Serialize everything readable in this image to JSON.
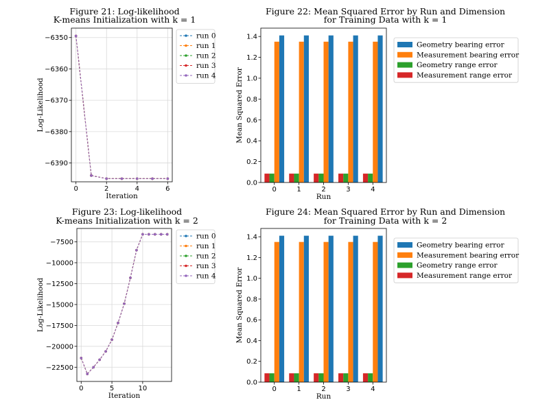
{
  "chart_data": [
    {
      "id": "fig21",
      "type": "line",
      "title": [
        "Figure 21: Log-likelihood",
        "K-means Initialization with k = 1"
      ],
      "xlabel": "Iteration",
      "ylabel": "Log-Likelihood",
      "xlim": [
        -0.3,
        6.3
      ],
      "ylim": [
        -6396,
        -6347
      ],
      "xticks": [
        0,
        2,
        4,
        6
      ],
      "yticks": [
        -6350,
        -6360,
        -6370,
        -6380,
        -6390
      ],
      "xtick_labels": [
        "0",
        "2",
        "4",
        "6"
      ],
      "ytick_labels": [
        "−6350",
        "−6360",
        "−6370",
        "−6380",
        "−6390"
      ],
      "grid": true,
      "legend": "outside-right",
      "x": [
        0,
        1,
        2,
        3,
        4,
        5,
        6
      ],
      "series": [
        {
          "name": "run 0",
          "color": "#1f77b4",
          "values": [
            -6349.5,
            -6394,
            -6395,
            -6395,
            -6395,
            -6395,
            -6395
          ]
        },
        {
          "name": "run 1",
          "color": "#ff7f0e",
          "values": [
            -6349.5,
            -6394,
            -6395,
            -6395,
            -6395,
            -6395,
            -6395
          ]
        },
        {
          "name": "run 2",
          "color": "#2ca02c",
          "values": [
            -6349.5,
            -6394,
            -6395,
            -6395,
            -6395,
            -6395,
            -6395
          ]
        },
        {
          "name": "run 3",
          "color": "#d62728",
          "values": [
            -6349.5,
            -6394,
            -6395,
            -6395,
            -6395,
            -6395,
            -6395
          ]
        },
        {
          "name": "run 4",
          "color": "#9467bd",
          "values": [
            -6349.5,
            -6394,
            -6395,
            -6395,
            -6395,
            -6395,
            -6395
          ]
        }
      ]
    },
    {
      "id": "fig22",
      "type": "bar",
      "title": [
        "Figure 22: Mean Squared Error by Run and Dimension",
        "for Training Data with k = 1"
      ],
      "xlabel": "Run",
      "ylabel": "Mean Squared Error",
      "ylim": [
        0,
        1.48
      ],
      "yticks": [
        0.0,
        0.2,
        0.4,
        0.6,
        0.8,
        1.0,
        1.2,
        1.4
      ],
      "ytick_labels": [
        "0.0",
        "0.2",
        "0.4",
        "0.6",
        "0.8",
        "1.0",
        "1.2",
        "1.4"
      ],
      "categories": [
        "0",
        "1",
        "2",
        "3",
        "4"
      ],
      "legend": "outside-right",
      "series": [
        {
          "name": "Measurement range error",
          "color": "#d62728",
          "values": [
            0.085,
            0.085,
            0.085,
            0.085,
            0.085
          ]
        },
        {
          "name": "Geometry range error",
          "color": "#2ca02c",
          "values": [
            0.085,
            0.085,
            0.085,
            0.085,
            0.085
          ]
        },
        {
          "name": "Measurement bearing error",
          "color": "#ff7f0e",
          "values": [
            1.35,
            1.35,
            1.35,
            1.35,
            1.35
          ]
        },
        {
          "name": "Geometry bearing error",
          "color": "#1f77b4",
          "values": [
            1.41,
            1.41,
            1.41,
            1.41,
            1.41
          ]
        }
      ],
      "legend_order": [
        "Geometry bearing error",
        "Measurement bearing error",
        "Geometry range error",
        "Measurement range error"
      ]
    },
    {
      "id": "fig23",
      "type": "line",
      "title": [
        "Figure 23: Log-likelihood",
        "K-means Initialization with k = 2"
      ],
      "xlabel": "Iteration",
      "ylabel": "Log-Likelihood",
      "xlim": [
        -0.7,
        14.7
      ],
      "ylim": [
        -24200,
        -5900
      ],
      "xticks": [
        0,
        5,
        10
      ],
      "yticks": [
        -7500,
        -10000,
        -12500,
        -15000,
        -17500,
        -20000,
        -22500
      ],
      "xtick_labels": [
        "0",
        "5",
        "10"
      ],
      "ytick_labels": [
        "−7500",
        "−10000",
        "−12500",
        "−15000",
        "−17500",
        "−20000",
        "−22500"
      ],
      "grid": true,
      "legend": "outside-right",
      "x": [
        0,
        1,
        2,
        3,
        4,
        5,
        6,
        7,
        8,
        9,
        10,
        11,
        12,
        13,
        14
      ],
      "series": [
        {
          "name": "run 0",
          "color": "#1f77b4",
          "values": [
            -21400,
            -23300,
            -22500,
            -21600,
            -20600,
            -19200,
            -17200,
            -14900,
            -11800,
            -8500,
            -6600,
            -6600,
            -6600,
            -6600,
            -6600
          ]
        },
        {
          "name": "run 1",
          "color": "#ff7f0e",
          "values": [
            -21400,
            -23300,
            -22500,
            -21600,
            -20600,
            -19200,
            -17200,
            -14900,
            -11800,
            -8500,
            -6600,
            -6600,
            -6600,
            -6600,
            -6600
          ]
        },
        {
          "name": "run 2",
          "color": "#2ca02c",
          "values": [
            -21400,
            -23300,
            -22500,
            -21600,
            -20600,
            -19200,
            -17200,
            -14900,
            -11800,
            -8500,
            -6600,
            -6600,
            -6600,
            -6600,
            -6600
          ]
        },
        {
          "name": "run 3",
          "color": "#d62728",
          "values": [
            -21400,
            -23300,
            -22500,
            -21600,
            -20600,
            -19200,
            -17200,
            -14900,
            -11800,
            -8500,
            -6600,
            -6600,
            -6600,
            -6600,
            -6600
          ]
        },
        {
          "name": "run 4",
          "color": "#9467bd",
          "values": [
            -21400,
            -23300,
            -22500,
            -21600,
            -20600,
            -19200,
            -17200,
            -14900,
            -11800,
            -8500,
            -6600,
            -6600,
            -6600,
            -6600,
            -6600
          ]
        }
      ]
    },
    {
      "id": "fig24",
      "type": "bar",
      "title": [
        "Figure 24: Mean Squared Error by Run and Dimension",
        "for Training Data with k = 2"
      ],
      "xlabel": "Run",
      "ylabel": "Mean Squared Error",
      "ylim": [
        0,
        1.48
      ],
      "yticks": [
        0.0,
        0.2,
        0.4,
        0.6,
        0.8,
        1.0,
        1.2,
        1.4
      ],
      "ytick_labels": [
        "0.0",
        "0.2",
        "0.4",
        "0.6",
        "0.8",
        "1.0",
        "1.2",
        "1.4"
      ],
      "categories": [
        "0",
        "1",
        "2",
        "3",
        "4"
      ],
      "legend": "outside-right",
      "series": [
        {
          "name": "Measurement range error",
          "color": "#d62728",
          "values": [
            0.085,
            0.085,
            0.085,
            0.085,
            0.085
          ]
        },
        {
          "name": "Geometry range error",
          "color": "#2ca02c",
          "values": [
            0.085,
            0.085,
            0.085,
            0.085,
            0.085
          ]
        },
        {
          "name": "Measurement bearing error",
          "color": "#ff7f0e",
          "values": [
            1.35,
            1.35,
            1.35,
            1.35,
            1.35
          ]
        },
        {
          "name": "Geometry bearing error",
          "color": "#1f77b4",
          "values": [
            1.41,
            1.41,
            1.41,
            1.41,
            1.41
          ]
        }
      ],
      "legend_order": [
        "Geometry bearing error",
        "Measurement bearing error",
        "Geometry range error",
        "Measurement range error"
      ]
    }
  ]
}
